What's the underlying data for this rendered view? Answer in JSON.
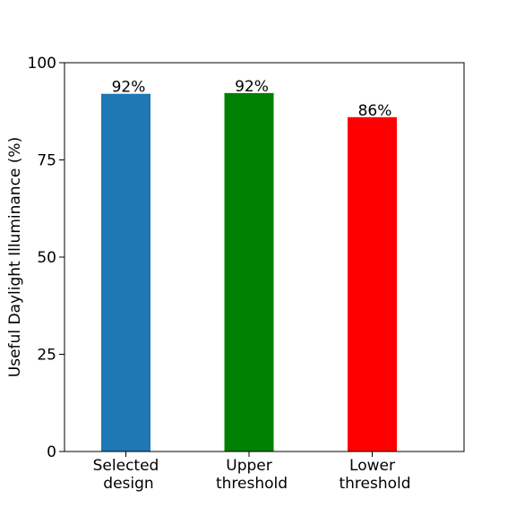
{
  "chart_data": {
    "type": "bar",
    "categories": [
      [
        "Selected",
        "design"
      ],
      [
        "Upper",
        "threshold"
      ],
      [
        "Lower",
        "threshold"
      ]
    ],
    "values": [
      92,
      92.2,
      86
    ],
    "data_labels": [
      "92%",
      "92%",
      "86%"
    ],
    "colors": [
      "#1f77b4",
      "#008000",
      "#ff0000"
    ],
    "title": "",
    "xlabel": "",
    "ylabel": "Useful Daylight Illuminance (%)",
    "ylim": [
      0,
      100
    ],
    "yticks": [
      0,
      25,
      50,
      75,
      100
    ],
    "grid": false,
    "legend": "none"
  }
}
